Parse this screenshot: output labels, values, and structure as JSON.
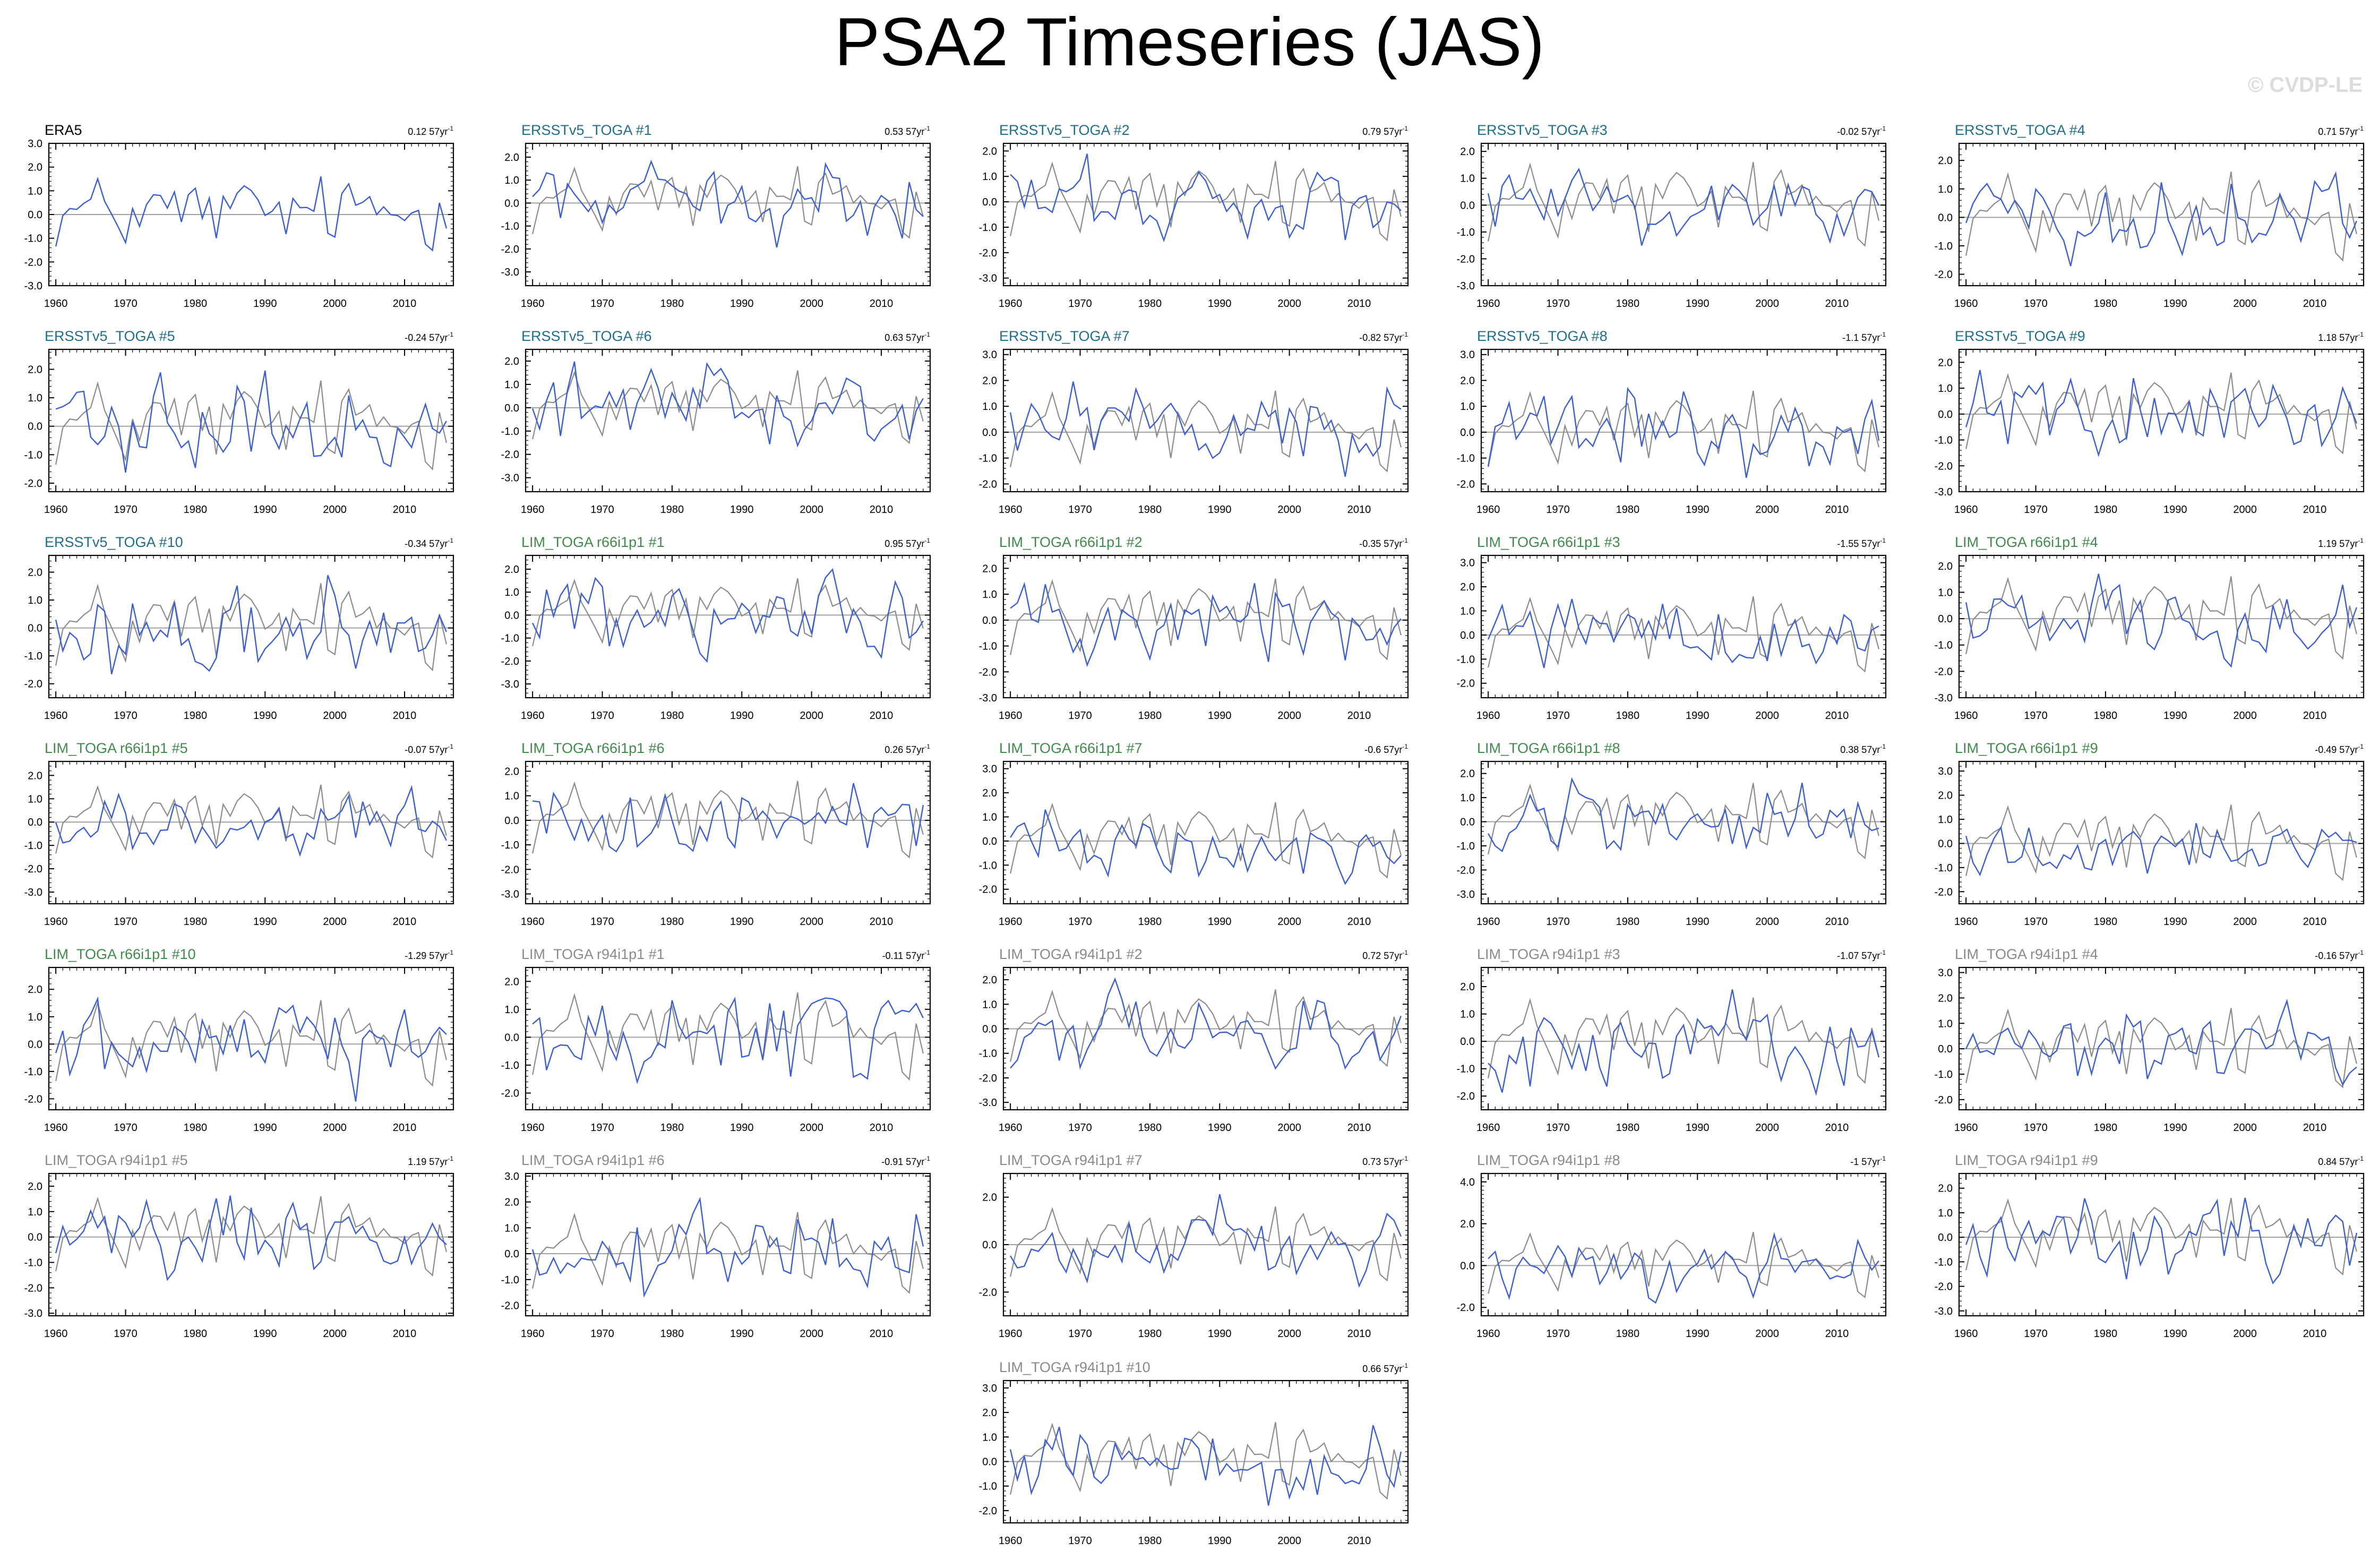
{
  "title": "PSA2 Timeseries (JAS)",
  "watermark": "© CVDP-LE",
  "colors": {
    "obs_title": "#000000",
    "ersst_title": "#1f6f8b",
    "r66_title": "#3f8c4a",
    "r94_title": "#8a8a8a",
    "member_line": "#3a5ed8",
    "obs_line": "#8c8c8c",
    "zero_line": "#a0a0a0",
    "axis": "#000000"
  },
  "chart_data": {
    "type": "line",
    "x_range": [
      1959,
      2017
    ],
    "x_ticks": [
      1960,
      1970,
      1980,
      1990,
      2000,
      2010
    ],
    "trend_unit": "57yr",
    "panels": [
      {
        "label": "ERA5",
        "group": "obs",
        "trend": "0.12",
        "yticks": [
          3.0,
          2.0,
          1.0,
          0.0,
          -1.0,
          -2.0,
          -3.0
        ],
        "ylim": [
          -3.0,
          3.0
        ]
      },
      {
        "label": "ERSSTv5_TOGA #1",
        "group": "ersst",
        "trend": "0.53",
        "yticks": [
          2.0,
          1.0,
          0.0,
          -1.0,
          -2.0,
          -3.0
        ],
        "ylim": [
          -3.6,
          2.6
        ]
      },
      {
        "label": "ERSSTv5_TOGA #2",
        "group": "ersst",
        "trend": "0.79",
        "yticks": [
          2.0,
          1.0,
          0.0,
          -1.0,
          -2.0,
          -3.0
        ],
        "ylim": [
          -3.3,
          2.3
        ]
      },
      {
        "label": "ERSSTv5_TOGA #3",
        "group": "ersst",
        "trend": "-0.02",
        "yticks": [
          2.0,
          1.0,
          0.0,
          -1.0,
          -2.0,
          -3.0
        ],
        "ylim": [
          -3.0,
          2.3
        ]
      },
      {
        "label": "ERSSTv5_TOGA #4",
        "group": "ersst",
        "trend": "0.71",
        "yticks": [
          2.0,
          1.0,
          0.0,
          -1.0,
          -2.0
        ],
        "ylim": [
          -2.4,
          2.6
        ]
      },
      {
        "label": "ERSSTv5_TOGA #5",
        "group": "ersst",
        "trend": "-0.24",
        "yticks": [
          2.0,
          1.0,
          0.0,
          -1.0,
          -2.0
        ],
        "ylim": [
          -2.3,
          2.7
        ]
      },
      {
        "label": "ERSSTv5_TOGA #6",
        "group": "ersst",
        "trend": "0.63",
        "yticks": [
          2.0,
          1.0,
          0.0,
          -1.0,
          -2.0,
          -3.0
        ],
        "ylim": [
          -3.6,
          2.5
        ]
      },
      {
        "label": "ERSSTv5_TOGA #7",
        "group": "ersst",
        "trend": "-0.82",
        "yticks": [
          3.0,
          2.0,
          1.0,
          0.0,
          -1.0,
          -2.0
        ],
        "ylim": [
          -2.3,
          3.2
        ]
      },
      {
        "label": "ERSSTv5_TOGA #8",
        "group": "ersst",
        "trend": "-1.1",
        "yticks": [
          3.0,
          2.0,
          1.0,
          0.0,
          -1.0,
          -2.0
        ],
        "ylim": [
          -2.3,
          3.2
        ]
      },
      {
        "label": "ERSSTv5_TOGA #9",
        "group": "ersst",
        "trend": "1.18",
        "yticks": [
          2.0,
          1.0,
          0.0,
          -1.0,
          -2.0,
          -3.0
        ],
        "ylim": [
          -3.0,
          2.5
        ]
      },
      {
        "label": "ERSSTv5_TOGA #10",
        "group": "ersst",
        "trend": "-0.34",
        "yticks": [
          2.0,
          1.0,
          0.0,
          -1.0,
          -2.0
        ],
        "ylim": [
          -2.5,
          2.6
        ]
      },
      {
        "label": "LIM_TOGA r66i1p1 #1",
        "group": "r66",
        "trend": "0.95",
        "yticks": [
          2.0,
          1.0,
          0.0,
          -1.0,
          -2.0,
          -3.0
        ],
        "ylim": [
          -3.6,
          2.6
        ]
      },
      {
        "label": "LIM_TOGA r66i1p1 #2",
        "group": "r66",
        "trend": "-0.35",
        "yticks": [
          2.0,
          1.0,
          0.0,
          -1.0,
          -2.0,
          -3.0
        ],
        "ylim": [
          -3.0,
          2.5
        ]
      },
      {
        "label": "LIM_TOGA r66i1p1 #3",
        "group": "r66",
        "trend": "-1.55",
        "yticks": [
          3.0,
          2.0,
          1.0,
          0.0,
          -1.0,
          -2.0
        ],
        "ylim": [
          -2.6,
          3.3
        ]
      },
      {
        "label": "LIM_TOGA r66i1p1 #4",
        "group": "r66",
        "trend": "1.19",
        "yticks": [
          2.0,
          1.0,
          0.0,
          -1.0,
          -2.0,
          -3.0
        ],
        "ylim": [
          -3.0,
          2.4
        ]
      },
      {
        "label": "LIM_TOGA r66i1p1 #5",
        "group": "r66",
        "trend": "-0.07",
        "yticks": [
          2.0,
          1.0,
          0.0,
          -1.0,
          -2.0,
          -3.0
        ],
        "ylim": [
          -3.5,
          2.6
        ]
      },
      {
        "label": "LIM_TOGA r66i1p1 #6",
        "group": "r66",
        "trend": "0.26",
        "yticks": [
          2.0,
          1.0,
          0.0,
          -1.0,
          -2.0,
          -3.0
        ],
        "ylim": [
          -3.4,
          2.4
        ]
      },
      {
        "label": "LIM_TOGA r66i1p1 #7",
        "group": "r66",
        "trend": "-0.6",
        "yticks": [
          3.0,
          2.0,
          1.0,
          0.0,
          -1.0,
          -2.0
        ],
        "ylim": [
          -2.6,
          3.3
        ]
      },
      {
        "label": "LIM_TOGA r66i1p1 #8",
        "group": "r66",
        "trend": "0.38",
        "yticks": [
          2.0,
          1.0,
          0.0,
          -1.0,
          -2.0,
          -3.0
        ],
        "ylim": [
          -3.4,
          2.5
        ]
      },
      {
        "label": "LIM_TOGA r66i1p1 #9",
        "group": "r66",
        "trend": "-0.49",
        "yticks": [
          3.0,
          2.0,
          1.0,
          0.0,
          -1.0,
          -2.0
        ],
        "ylim": [
          -2.5,
          3.4
        ]
      },
      {
        "label": "LIM_TOGA r66i1p1 #10",
        "group": "r66",
        "trend": "-1.29",
        "yticks": [
          2.0,
          1.0,
          0.0,
          -1.0,
          -2.0
        ],
        "ylim": [
          -2.4,
          2.8
        ]
      },
      {
        "label": "LIM_TOGA r94i1p1 #1",
        "group": "r94",
        "trend": "-0.11",
        "yticks": [
          2.0,
          1.0,
          0.0,
          -1.0,
          -2.0
        ],
        "ylim": [
          -2.6,
          2.5
        ]
      },
      {
        "label": "LIM_TOGA r94i1p1 #2",
        "group": "r94",
        "trend": "0.72",
        "yticks": [
          2.0,
          1.0,
          0.0,
          -1.0,
          -2.0,
          -3.0
        ],
        "ylim": [
          -3.3,
          2.5
        ]
      },
      {
        "label": "LIM_TOGA r94i1p1 #3",
        "group": "r94",
        "trend": "-1.07",
        "yticks": [
          2.0,
          1.0,
          0.0,
          -1.0,
          -2.0
        ],
        "ylim": [
          -2.5,
          2.7
        ]
      },
      {
        "label": "LIM_TOGA r94i1p1 #4",
        "group": "r94",
        "trend": "-0.16",
        "yticks": [
          3.0,
          2.0,
          1.0,
          0.0,
          -1.0,
          -2.0
        ],
        "ylim": [
          -2.4,
          3.2
        ]
      },
      {
        "label": "LIM_TOGA r94i1p1 #5",
        "group": "r94",
        "trend": "1.19",
        "yticks": [
          2.0,
          1.0,
          0.0,
          -1.0,
          -2.0,
          -3.0
        ],
        "ylim": [
          -3.1,
          2.5
        ]
      },
      {
        "label": "LIM_TOGA r94i1p1 #6",
        "group": "r94",
        "trend": "-0.91",
        "yticks": [
          3.0,
          2.0,
          1.0,
          0.0,
          -1.0,
          -2.0
        ],
        "ylim": [
          -2.4,
          3.1
        ]
      },
      {
        "label": "LIM_TOGA r94i1p1 #7",
        "group": "r94",
        "trend": "0.73",
        "yticks": [
          2.0,
          0.0,
          -2.0
        ],
        "ylim": [
          -3.0,
          3.0
        ]
      },
      {
        "label": "LIM_TOGA r94i1p1 #8",
        "group": "r94",
        "trend": "-1",
        "yticks": [
          4.0,
          2.0,
          0.0,
          -2.0
        ],
        "ylim": [
          -2.4,
          4.4
        ]
      },
      {
        "label": "LIM_TOGA r94i1p1 #9",
        "group": "r94",
        "trend": "0.84",
        "yticks": [
          2.0,
          1.0,
          0.0,
          -1.0,
          -2.0,
          -3.0
        ],
        "ylim": [
          -3.2,
          2.6
        ]
      },
      {
        "label": "LIM_TOGA r94i1p1 #10",
        "group": "r94",
        "trend": "0.66",
        "yticks": [
          3.0,
          2.0,
          1.0,
          0.0,
          -1.0,
          -2.0
        ],
        "ylim": [
          -2.5,
          3.3
        ]
      }
    ]
  }
}
